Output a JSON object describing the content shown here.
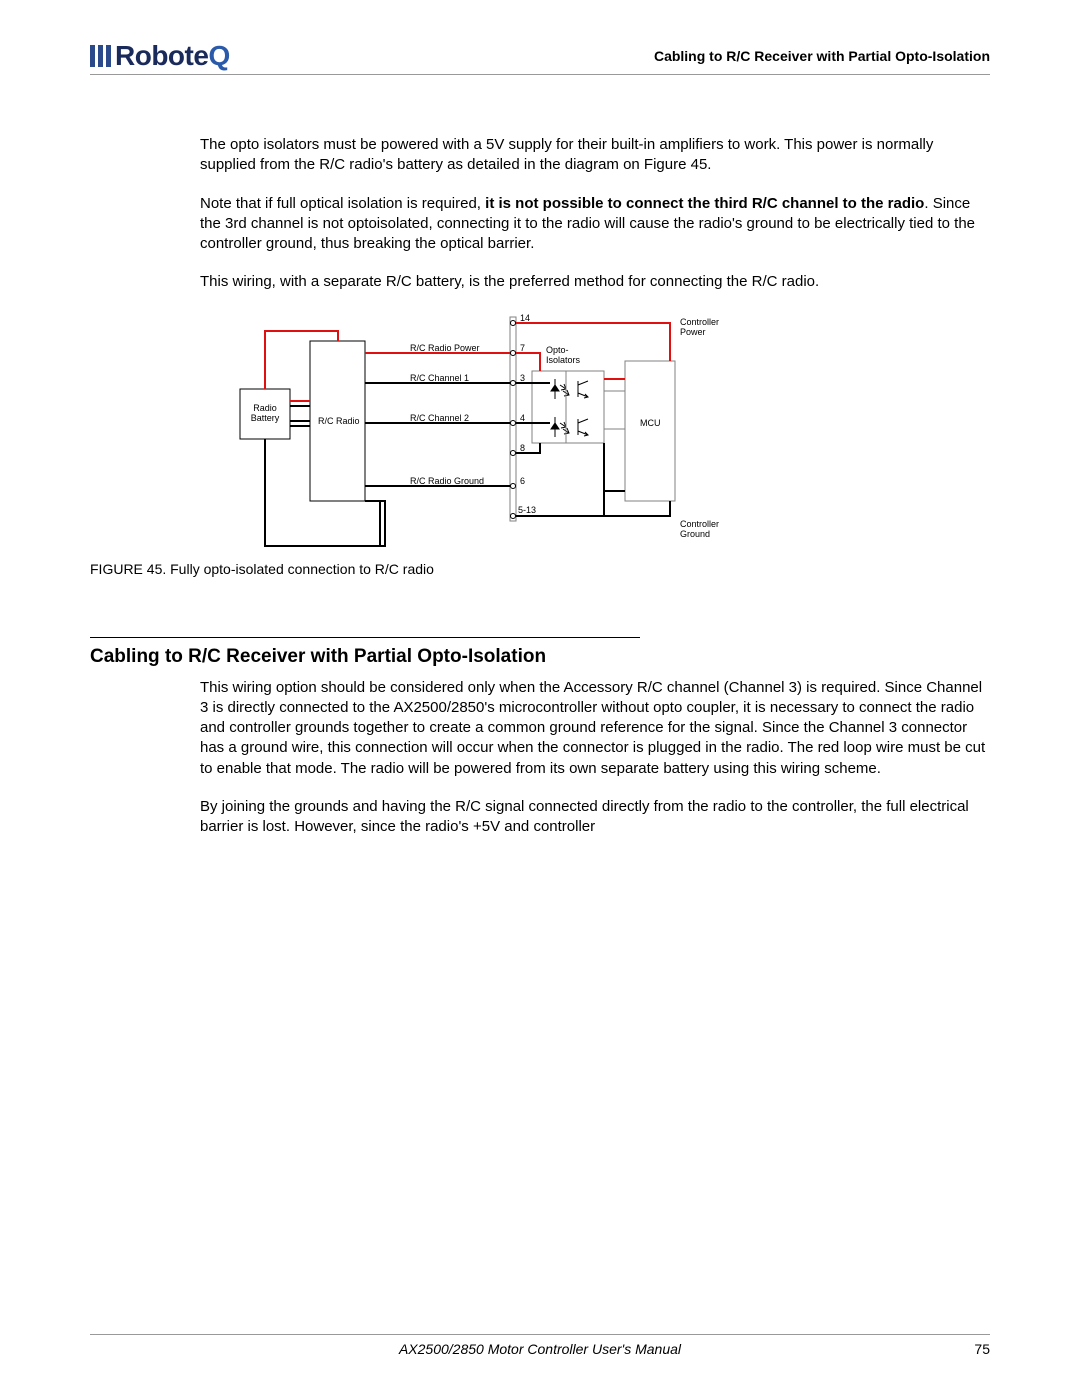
{
  "logo": {
    "bars": [
      "#2b4a8b",
      "#2b4a8b",
      "#2b4a8b"
    ],
    "text_plain": "Robote",
    "text_accent": "Q",
    "text_color": "#1a2a5a",
    "accent_color": "#2b5aaa"
  },
  "header": {
    "title": "Cabling to R/C Receiver with Partial Opto-Isolation"
  },
  "paragraphs": {
    "p1": "The opto isolators must be powered with a 5V supply for their built-in amplifiers to work. This power is normally supplied from the R/C radio's battery as detailed in the diagram on Figure 45.",
    "p2a": "Note that if full optical isolation is required, ",
    "p2b": "it is not possible to connect the third R/C channel to the radio",
    "p2c": ". Since the 3rd channel is not optoisolated, connecting it to the radio will cause the radio's ground to be electrically tied to the controller ground, thus breaking the optical barrier.",
    "p3": "This wiring, with a separate R/C battery, is the preferred method for connecting the R/C radio.",
    "p4": "This wiring option should be considered only when the Accessory R/C channel (Channel 3) is required. Since Channel 3 is directly connected to the AX2500/2850's microcontroller without opto coupler, it is necessary to connect the radio and controller grounds together to create a common ground reference for the signal. Since the Channel 3 connector has a ground wire, this connection will occur when the connector is plugged in the radio. The red loop wire must be cut to enable that mode. The radio will be powered from its own separate battery using this wiring scheme.",
    "p5": "By joining the grounds and having the R/C signal connected directly from the radio to the controller, the full electrical barrier is lost. However, since the radio's +5V and controller"
  },
  "figure": {
    "caption": "FIGURE 45.  Fully opto-isolated connection to R/C radio",
    "labels": {
      "radio_battery": "Radio\nBattery",
      "rc_radio": "R/C Radio",
      "rc_radio_power": "R/C Radio Power",
      "rc_channel1": "R/C Channel 1",
      "rc_channel2": "R/C Channel 2",
      "rc_radio_ground": "R/C Radio Ground",
      "opto_isolators": "Opto-\nIsolators",
      "mcu": "MCU",
      "controller_power": "Controller\nPower",
      "controller_ground": "Controller\nGround",
      "pin14": "14",
      "pin7": "7",
      "pin3": "3",
      "pin4": "4",
      "pin8": "8",
      "pin6": "6",
      "pin5_13": "5-13"
    },
    "colors": {
      "red": "#e01010",
      "black": "#000000",
      "gray": "#808080"
    }
  },
  "section": {
    "heading": "Cabling to R/C Receiver with Partial Opto-Isolation"
  },
  "footer": {
    "text": "AX2500/2850 Motor Controller User's Manual",
    "page": "75"
  }
}
